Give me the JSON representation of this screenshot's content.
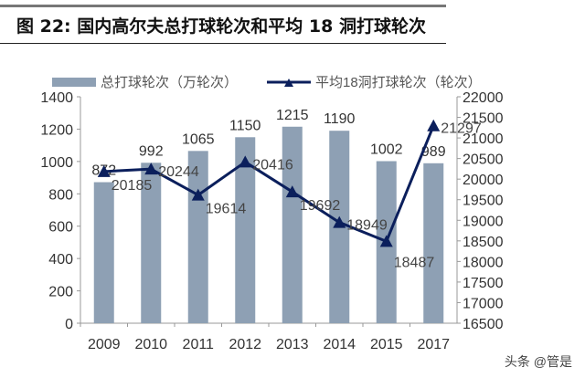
{
  "title": "图 22:  国内高尔夫总打球轮次和平均 18 洞打球轮次",
  "watermark": "头条 @管是",
  "chart_data": {
    "type": "bar+line",
    "categories": [
      "2009",
      "2010",
      "2011",
      "2012",
      "2013",
      "2014",
      "2015",
      "2017"
    ],
    "series": [
      {
        "name": "总打球轮次（万轮次）",
        "type": "bar",
        "axis": "left",
        "color": "#8EA0B4",
        "values": [
          872,
          992,
          1065,
          1150,
          1215,
          1190,
          1002,
          989
        ]
      },
      {
        "name": "平均18洞打球轮次（轮次）",
        "type": "line",
        "axis": "right",
        "color": "#0B1F5C",
        "marker": "triangle",
        "values": [
          20185,
          20244,
          19614,
          20416,
          19692,
          18949,
          18487,
          21297
        ]
      }
    ],
    "left_axis": {
      "range": [
        0,
        1400
      ],
      "ticks": [
        0,
        200,
        400,
        600,
        800,
        1000,
        1200,
        1400
      ]
    },
    "right_axis": {
      "range": [
        16500,
        22000
      ],
      "ticks": [
        16500,
        17000,
        17500,
        18000,
        18500,
        19000,
        19500,
        20000,
        20500,
        21000,
        21500,
        22000
      ]
    },
    "legend": "top",
    "grid": false
  }
}
